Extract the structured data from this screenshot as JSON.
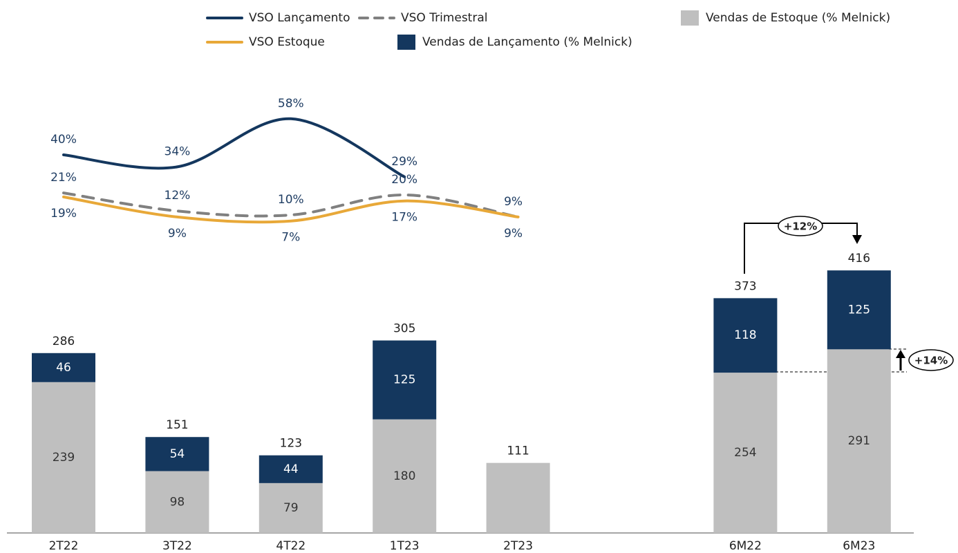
{
  "chart_data": {
    "type": "bar",
    "categories": [
      "2T22",
      "3T22",
      "4T22",
      "1T23",
      "2T23",
      null,
      "6M22",
      "6M23"
    ],
    "series": [
      {
        "name": "Vendas de Estoque (% Melnick)",
        "type": "bar",
        "color": "#bfbfbf",
        "values": [
          239,
          98,
          79,
          180,
          111,
          null,
          254,
          291
        ]
      },
      {
        "name": "Vendas de Lançamento (% Melnick)",
        "type": "bar",
        "color": "#14375e",
        "values": [
          46,
          54,
          44,
          125,
          null,
          null,
          118,
          125
        ]
      },
      {
        "name": "VSO Lançamento",
        "type": "line",
        "color": "#14375e",
        "values": [
          40,
          34,
          58,
          29,
          null,
          null,
          null,
          null
        ],
        "value_labels": [
          "40%",
          "34%",
          "58%",
          "29%",
          null,
          null,
          null,
          null
        ]
      },
      {
        "name": "VSO Trimestral",
        "type": "line",
        "dashed": true,
        "color": "#808080",
        "values": [
          21,
          12,
          10,
          20,
          9,
          null,
          null,
          null
        ],
        "value_labels": [
          "21%",
          "12%",
          "10%",
          "20%",
          "9%",
          null,
          null,
          null
        ]
      },
      {
        "name": "VSO Estoque",
        "type": "line",
        "color": "#e8a838",
        "values": [
          19,
          9,
          7,
          17,
          9,
          null,
          null,
          null
        ],
        "value_labels": [
          "19%",
          "9%",
          "7%",
          "17%",
          "9%",
          null,
          null,
          null
        ]
      }
    ],
    "totals": [
      286,
      151,
      123,
      305,
      111,
      null,
      373,
      416
    ],
    "annotations": [
      "+12%",
      "+14%"
    ]
  }
}
